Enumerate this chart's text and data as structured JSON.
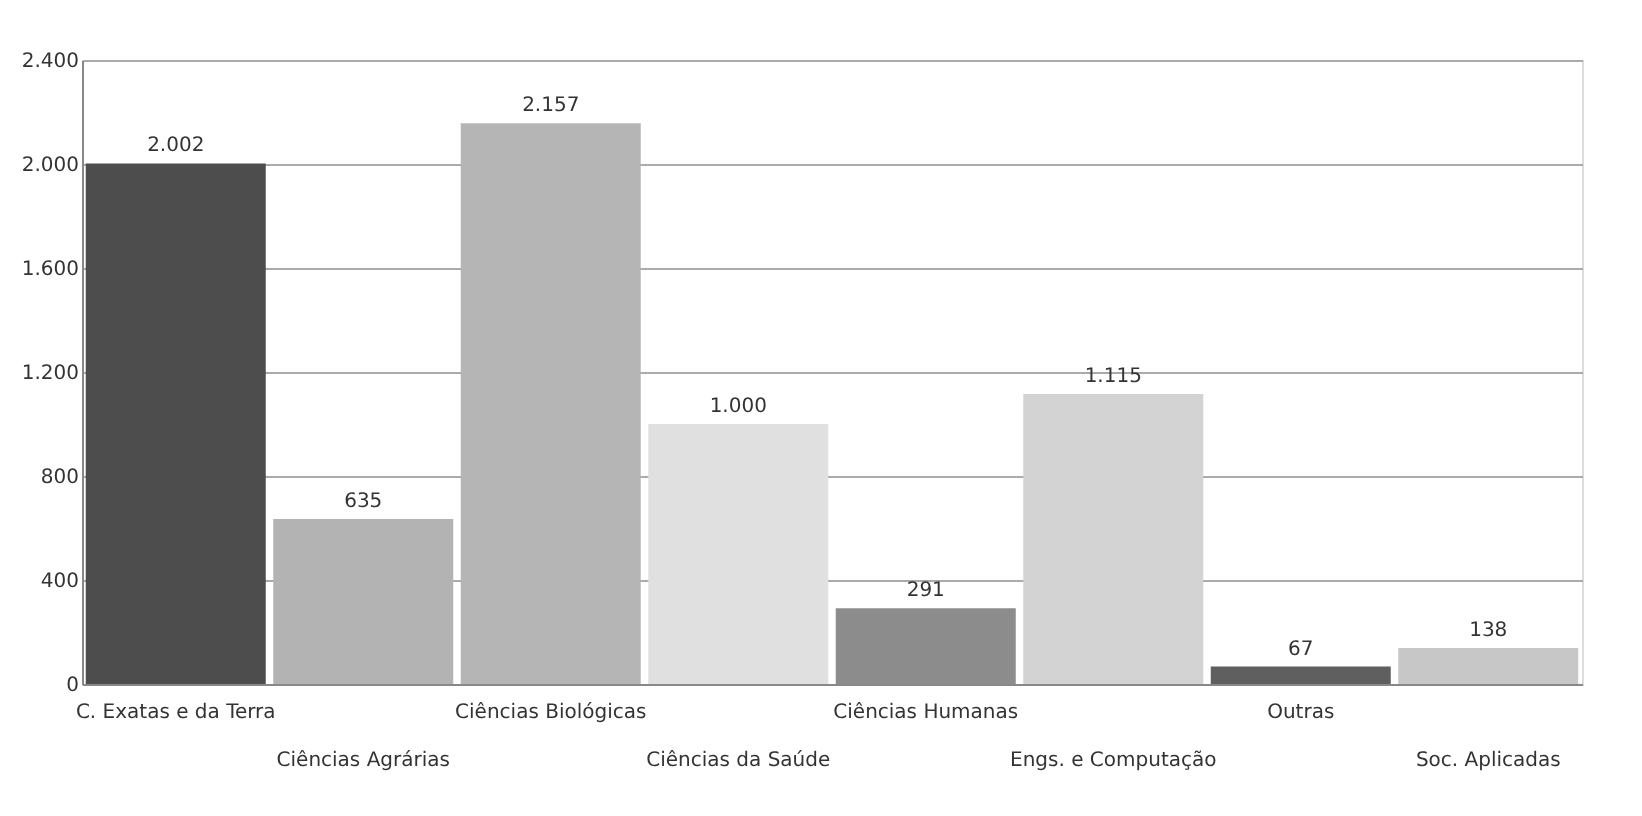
{
  "chart_data": {
    "type": "bar",
    "categories": [
      "C. Exatas e da Terra",
      "Ciências Agrárias",
      "Ciências Biológicas",
      "Ciências da Saúde",
      "Ciências Humanas",
      "Engs. e Computação",
      "Outras",
      "Soc. Aplicadas"
    ],
    "values": [
      2002,
      635,
      2157,
      1000,
      291,
      1115,
      67,
      138
    ],
    "colors": [
      "#4d4d4d",
      "#b3b3b3",
      "#b5b5b5",
      "#e0e0e0",
      "#8c8c8c",
      "#d3d3d3",
      "#5f5f5f",
      "#c7c7c7"
    ],
    "value_labels": [
      "2.002",
      "635",
      "2.157",
      "1.000",
      "291",
      "1.115",
      "67",
      "138"
    ],
    "ylim": [
      0,
      2400
    ],
    "yticks": [
      0,
      {
        "value": 400,
        "label": "400"
      },
      {
        "value": 800,
        "label": "800"
      },
      {
        "value": 1200,
        "label": "1.200"
      },
      {
        "value": 1600,
        "label": "1.600"
      },
      {
        "value": 2000,
        "label": "2.000"
      },
      {
        "value": 2400,
        "label": "2.400"
      }
    ],
    "grid": "y"
  }
}
